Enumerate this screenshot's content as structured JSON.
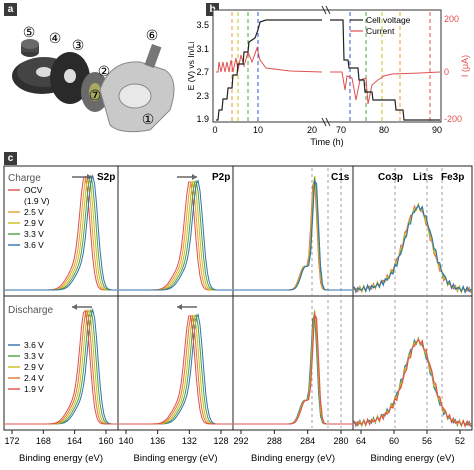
{
  "panels": {
    "a": "a",
    "b": "b",
    "c": "c"
  },
  "colors": {
    "cell_voltage": "#222222",
    "current": "#e05050",
    "ocv": "#e0504a",
    "v25": "#e8a030",
    "v29": "#c8c020",
    "v33": "#50a040",
    "v36": "#3070b0",
    "v24": "#e07830",
    "v19": "#e0504a",
    "vline_orange": "#e8a030",
    "vline_yellow": "#c8c020",
    "vline_green": "#50a040",
    "vline_blue": "#3050c0"
  },
  "cell_parts": [
    "⑤",
    "④",
    "③",
    "⑦",
    "②",
    "⑥",
    "①"
  ],
  "chart_b": {
    "ylabel_left": "E (V) vs In/Li",
    "ylabel_right": "I (μA)",
    "xlabel": "Time (h)",
    "left_ticks": [
      "1.9",
      "2.3",
      "2.7",
      "3.1",
      "3.5"
    ],
    "right_ticks": [
      "200",
      "0",
      "-200"
    ],
    "x_ticks": [
      "0",
      "10",
      "20",
      "70",
      "80",
      "90"
    ],
    "legend": [
      {
        "label": "Cell voltage",
        "color": "#222222"
      },
      {
        "label": "Current",
        "color": "#e05050"
      }
    ]
  },
  "chart_c": {
    "row_labels": [
      "Charge",
      "Discharge"
    ],
    "legend_charge": [
      "OCV",
      "(1.9 V)",
      "2.5 V",
      "2.9 V",
      "3.3 V",
      "3.6 V"
    ],
    "legend_discharge": [
      "3.6 V",
      "3.3 V",
      "2.9 V",
      "2.4 V",
      "1.9 V"
    ],
    "core_levels": [
      "S2p",
      "P2p",
      "C1s"
    ],
    "fe_labels": [
      "Co3p",
      "Li1s",
      "Fe3p"
    ],
    "x_axes": [
      {
        "ticks": [
          "172",
          "168",
          "164",
          "160"
        ],
        "label": "Binding energy (eV)"
      },
      {
        "ticks": [
          "140",
          "136",
          "132",
          "128"
        ],
        "label": "Binding energy (eV)"
      },
      {
        "ticks": [
          "292",
          "288",
          "284",
          "280"
        ],
        "label": "Binding energy (eV)"
      },
      {
        "ticks": [
          "64",
          "60",
          "56",
          "52"
        ],
        "label": "Binding energy (eV)"
      }
    ]
  },
  "chart_data": [
    {
      "type": "line",
      "title": "",
      "xlabel": "Time (h)",
      "ylabel": "E (V) vs In/Li",
      "ylabel_right": "I (μA)",
      "ylim": [
        1.9,
        3.5
      ],
      "ylim_right": [
        -200,
        200
      ],
      "series": [
        {
          "name": "Cell voltage",
          "x": [
            0,
            2,
            4,
            6,
            8,
            10,
            12,
            20,
            70,
            72,
            74,
            76,
            78,
            80,
            84,
            88,
            90
          ],
          "y": [
            1.9,
            2.1,
            2.5,
            2.9,
            3.2,
            3.55,
            3.55,
            3.55,
            3.55,
            2.9,
            2.9,
            2.4,
            2.4,
            1.9,
            1.9,
            1.9,
            1.9
          ]
        },
        {
          "name": "Current",
          "x": [
            0,
            2,
            4,
            6,
            8,
            10,
            12,
            20,
            70,
            72,
            74,
            76,
            78,
            80,
            84,
            88,
            90
          ],
          "y": [
            0,
            60,
            55,
            50,
            45,
            40,
            10,
            5,
            0,
            -60,
            -40,
            -50,
            -30,
            -30,
            -5,
            -2,
            0
          ]
        }
      ]
    },
    {
      "type": "line",
      "title": "",
      "xlabel": "Binding energy (eV)",
      "ylabel": "",
      "series": [
        {
          "name": "S2p",
          "x": [
            172,
            168,
            164,
            162,
            161,
            160
          ],
          "y": [
            0.05,
            0.1,
            0.4,
            0.9,
            0.8,
            0.2
          ]
        },
        {
          "name": "P2p",
          "x": [
            140,
            136,
            133,
            132,
            131,
            128
          ],
          "y": [
            0.05,
            0.15,
            0.7,
            0.95,
            0.6,
            0.05
          ]
        },
        {
          "name": "C1s",
          "x": [
            292,
            288,
            285,
            284.5,
            283,
            280
          ],
          "y": [
            0.05,
            0.1,
            0.7,
            0.98,
            0.3,
            0.02
          ]
        },
        {
          "name": "Fe3p",
          "x": [
            66,
            60,
            56,
            55,
            52,
            50
          ],
          "y": [
            0.3,
            0.4,
            0.85,
            0.9,
            0.4,
            0.2
          ]
        }
      ]
    }
  ]
}
